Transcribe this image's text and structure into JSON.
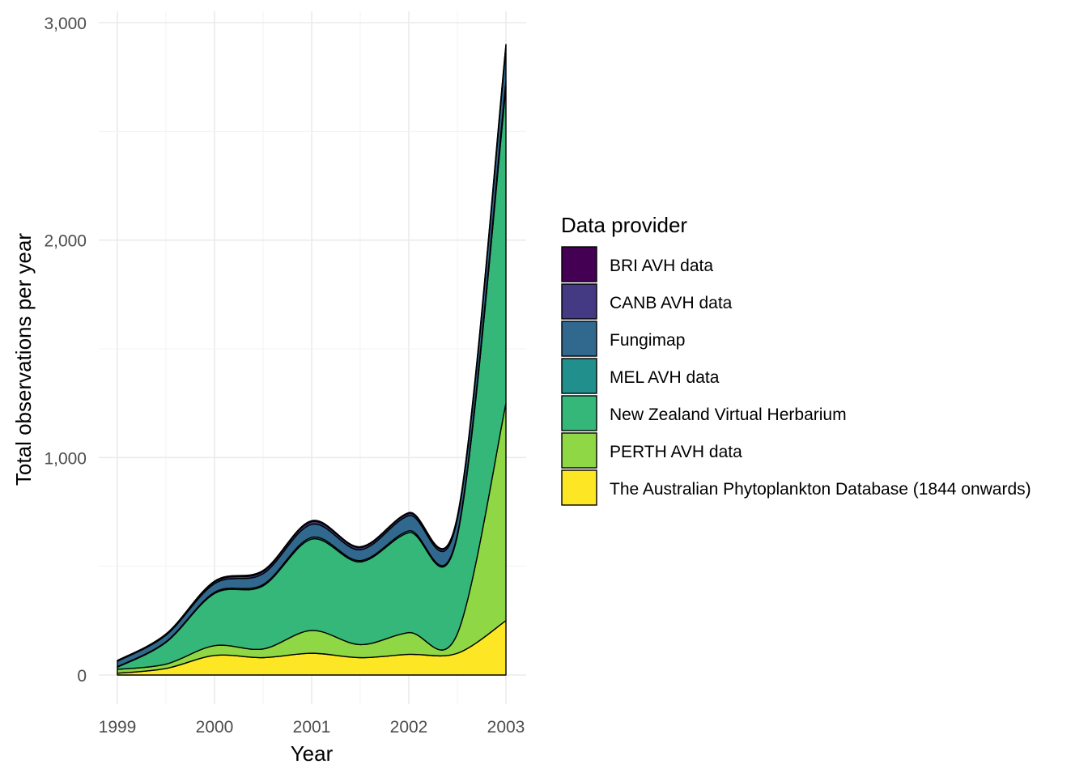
{
  "chart_data": {
    "type": "area",
    "stacked": true,
    "smoothed": true,
    "xlabel": "Year",
    "ylabel": "Total observations per year",
    "x": [
      1999,
      1999.5,
      2000,
      2000.5,
      2001,
      2001.5,
      2002,
      2002.5,
      2003
    ],
    "x_ticks": [
      "1999",
      "2000",
      "2001",
      "2002",
      "2003"
    ],
    "x_tick_values": [
      1999,
      2000,
      2001,
      2002,
      2003
    ],
    "y_ticks": [
      "0",
      "1,000",
      "2,000",
      "3,000"
    ],
    "y_tick_values": [
      0,
      1000,
      2000,
      3000
    ],
    "xlim": [
      1998.85,
      2003.2
    ],
    "ylim": [
      0,
      3000
    ],
    "grid": true,
    "legend": {
      "title": "Data provider",
      "position": "right"
    },
    "series": [
      {
        "name": "BRI AVH data",
        "color": "#440154",
        "values": [
          1,
          2,
          4,
          5,
          5,
          4,
          4,
          4,
          5
        ]
      },
      {
        "name": "CANB AVH data",
        "color": "#443A83",
        "values": [
          3,
          4,
          8,
          10,
          12,
          10,
          10,
          10,
          15
        ]
      },
      {
        "name": "Fungimap",
        "color": "#31688E",
        "values": [
          25,
          30,
          40,
          50,
          60,
          50,
          70,
          70,
          150
        ]
      },
      {
        "name": "MEL AVH data",
        "color": "#21908C",
        "values": [
          2,
          3,
          5,
          6,
          8,
          6,
          8,
          8,
          30
        ]
      },
      {
        "name": "New Zealand Virtual Herbarium",
        "color": "#35B779",
        "values": [
          10,
          100,
          240,
          290,
          420,
          380,
          460,
          450,
          1450
        ]
      },
      {
        "name": "PERTH AVH data",
        "color": "#8FD744",
        "values": [
          18,
          20,
          45,
          40,
          105,
          60,
          100,
          90,
          1000
        ]
      },
      {
        "name": "The Australian Phytoplankton Database (1844 onwards)",
        "color": "#FDE725",
        "values": [
          8,
          30,
          90,
          80,
          100,
          80,
          95,
          100,
          250
        ]
      }
    ]
  }
}
